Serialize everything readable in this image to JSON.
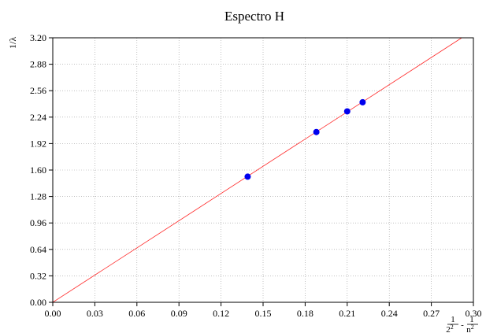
{
  "chart_data": {
    "type": "scatter",
    "title": "Espectro H",
    "ylabel": "1/λ",
    "xlabel": {
      "prefix_numerator": "1",
      "prefix_denominator": "2",
      "prefix_exponent": "2",
      "minus": "-",
      "suffix_numerator": "1",
      "suffix_denominator": "n",
      "suffix_exponent": "2"
    },
    "xlim": [
      0.0,
      0.3
    ],
    "ylim": [
      0.0,
      3.2
    ],
    "x_ticks": [
      "0.00",
      "0.03",
      "0.06",
      "0.09",
      "0.12",
      "0.15",
      "0.18",
      "0.21",
      "0.24",
      "0.27",
      "0.30"
    ],
    "y_ticks": [
      "0.00",
      "0.32",
      "0.64",
      "0.96",
      "1.28",
      "1.60",
      "1.92",
      "2.24",
      "2.56",
      "2.88",
      "3.20"
    ],
    "grid": true,
    "series": [
      {
        "kind": "points",
        "color": "#0000ee",
        "points": [
          {
            "x": 0.139,
            "y": 1.52
          },
          {
            "x": 0.188,
            "y": 2.06
          },
          {
            "x": 0.21,
            "y": 2.31
          },
          {
            "x": 0.221,
            "y": 2.42
          }
        ]
      },
      {
        "kind": "fit-line",
        "color": "#ff2a2a",
        "slope": 10.97,
        "intercept": 0.0
      }
    ]
  }
}
